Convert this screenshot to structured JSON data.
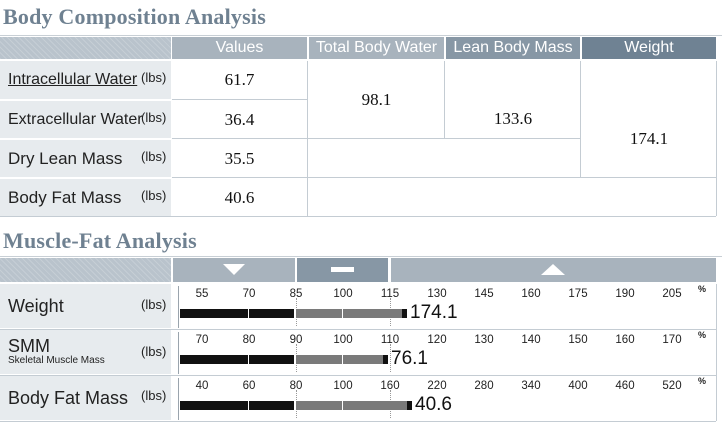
{
  "body_comp": {
    "title": "Body Composition Analysis",
    "headers": {
      "values": "Values",
      "tbw": "Total Body Water",
      "lbm": "Lean Body Mass",
      "weight": "Weight"
    },
    "rows": [
      {
        "label": "Intracellular Water",
        "unit": "(lbs)",
        "value": "61.7"
      },
      {
        "label": "Extracellular Water",
        "unit": "(lbs)",
        "value": "36.4"
      },
      {
        "label": "Dry Lean Mass",
        "unit": "(lbs)",
        "value": "35.5"
      },
      {
        "label": "Body Fat Mass",
        "unit": "(lbs)",
        "value": "40.6"
      }
    ],
    "tbw_value": "98.1",
    "lbm_value": "133.6",
    "weight_value": "174.1"
  },
  "muscle_fat": {
    "title": "Muscle-Fat Analysis",
    "bands": [
      "under-icon",
      "normal-icon",
      "over-icon"
    ],
    "pct_symbol": "%",
    "rows": [
      {
        "label": "Weight",
        "sublabel": "",
        "unit": "(lbs)",
        "ticks": [
          "55",
          "70",
          "85",
          "100",
          "115",
          "130",
          "145",
          "160",
          "175",
          "190",
          "205"
        ],
        "value": "174.1",
        "bar_fraction": 0.94
      },
      {
        "label": "SMM",
        "sublabel": "Skeletal Muscle Mass",
        "unit": "(lbs)",
        "ticks": [
          "70",
          "80",
          "90",
          "100",
          "110",
          "120",
          "130",
          "140",
          "150",
          "160",
          "170"
        ],
        "value": "76.1",
        "bar_fraction": 0.86
      },
      {
        "label": "Body Fat Mass",
        "sublabel": "",
        "unit": "(lbs)",
        "ticks": [
          "40",
          "60",
          "80",
          "100",
          "160",
          "220",
          "280",
          "340",
          "400",
          "460",
          "520"
        ],
        "value": "40.6",
        "bar_fraction": 0.96
      }
    ]
  },
  "colors": {
    "title": "#6f8191",
    "header_dark": "#6f8293",
    "bar_black": "#111111",
    "bar_gray": "#7a7a7a"
  }
}
